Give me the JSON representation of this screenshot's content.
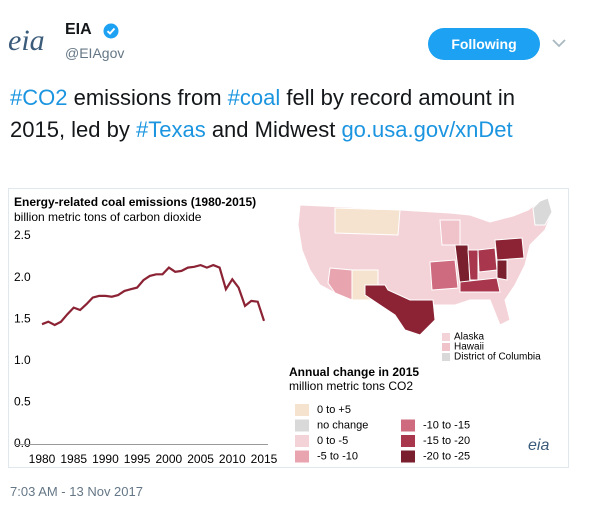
{
  "header": {
    "logo": "eia",
    "name": "EIA",
    "handle": "@EIAgov",
    "button": "Following"
  },
  "tweet": {
    "segments": [
      {
        "text": "#CO2",
        "link": true
      },
      {
        "text": " emissions from ",
        "link": false
      },
      {
        "text": "#coal",
        "link": true
      },
      {
        "text": " fell by record amount in 2015, led by ",
        "link": false
      },
      {
        "text": "#Texas",
        "link": true
      },
      {
        "text": " and Midwest ",
        "link": false
      },
      {
        "text": "go.usa.gov/xnDet",
        "link": true
      }
    ],
    "timestamp": "7:03 AM - 13 Nov 2017"
  },
  "chart_data": {
    "type": "line",
    "title": "Energy-related coal emissions (1980-2015)",
    "subtitle": "billion metric tons of carbon dioxide",
    "x": [
      1980,
      1981,
      1982,
      1983,
      1984,
      1985,
      1986,
      1987,
      1988,
      1989,
      1990,
      1991,
      1992,
      1993,
      1994,
      1995,
      1996,
      1997,
      1998,
      1999,
      2000,
      2001,
      2002,
      2003,
      2004,
      2005,
      2006,
      2007,
      2008,
      2009,
      2010,
      2011,
      2012,
      2013,
      2014,
      2015
    ],
    "series": [
      {
        "name": "Coal emissions",
        "color": "#8b2335",
        "values": [
          1.44,
          1.47,
          1.43,
          1.47,
          1.56,
          1.64,
          1.61,
          1.68,
          1.76,
          1.78,
          1.78,
          1.77,
          1.79,
          1.84,
          1.86,
          1.88,
          1.97,
          2.02,
          2.04,
          2.04,
          2.12,
          2.07,
          2.08,
          2.12,
          2.13,
          2.15,
          2.12,
          2.15,
          2.12,
          1.86,
          1.98,
          1.88,
          1.66,
          1.72,
          1.71,
          1.48
        ]
      }
    ],
    "xlim": [
      1980,
      2015
    ],
    "xticks": [
      1980,
      1985,
      1990,
      1995,
      2000,
      2005,
      2010,
      2015
    ],
    "ylim": [
      0,
      2.5
    ],
    "yticks": [
      {
        "value": 0,
        "label": "0.0"
      },
      0.5,
      {
        "value": 1,
        "label": "1.0"
      },
      1.5,
      {
        "value": 2,
        "label": "2.0"
      },
      2.5
    ],
    "grid": false
  },
  "map": {
    "title": "Annual change in 2015",
    "subtitle": "million metric tons CO2",
    "insets": [
      {
        "label": "Alaska",
        "color": "#f4d3d8"
      },
      {
        "label": "Hawaii",
        "color": "#f0c2ca"
      },
      {
        "label": "District of Columbia",
        "color": "#d9d9d9"
      }
    ],
    "legend": [
      {
        "label": "0 to +5",
        "color": "#f5e3cf"
      },
      {
        "label": "no change",
        "color": "#d9d9d9"
      },
      {
        "label": "0 to -5",
        "color": "#f4d3d8"
      },
      {
        "label": "-5 to -10",
        "color": "#e8a5b0"
      },
      {
        "label": "-10 to -15",
        "color": "#cf6b7e"
      },
      {
        "label": "-15 to -20",
        "color": "#a8374d"
      },
      {
        "label": "-20 to -25",
        "color": "#7a1f2e"
      }
    ],
    "logo": "eia"
  }
}
